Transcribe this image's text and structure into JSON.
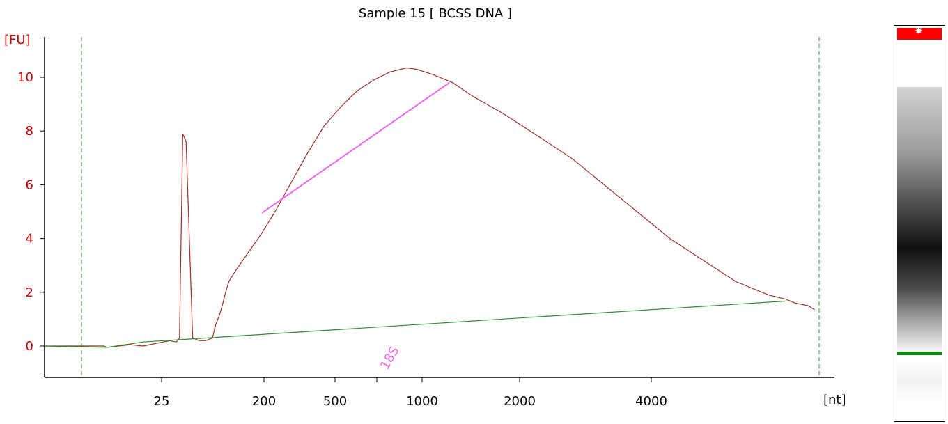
{
  "chart_data": {
    "type": "line",
    "title": "Sample 15  [ BCSS DNA ]",
    "ylabel": "[FU]",
    "xlabel": "[nt]",
    "ylim": [
      -1,
      11
    ],
    "yticks": [
      0,
      2,
      4,
      6,
      8,
      10
    ],
    "x_tick_labels": [
      "25",
      "200",
      "500",
      "1000",
      "2000",
      "4000"
    ],
    "grid": false,
    "series": [
      {
        "color": "#a0302a",
        "points": [
          [
            0,
            0
          ],
          [
            18,
            0
          ],
          [
            19,
            -0.05
          ],
          [
            26,
            0.05
          ],
          [
            30,
            0
          ],
          [
            34,
            0.1
          ],
          [
            38,
            0.2
          ],
          [
            40,
            0.15
          ],
          [
            41,
            0.3
          ],
          [
            42,
            7.9
          ],
          [
            43,
            7.6
          ],
          [
            45,
            0.3
          ],
          [
            47,
            0.2
          ],
          [
            49,
            0.2
          ],
          [
            51,
            0.3
          ],
          [
            52,
            0.8
          ],
          [
            53,
            1.1
          ],
          [
            54,
            1.5
          ],
          [
            55,
            2.0
          ],
          [
            56,
            2.4
          ],
          [
            58,
            2.8
          ],
          [
            62,
            3.5
          ],
          [
            66,
            4.2
          ],
          [
            70,
            5.0
          ],
          [
            75,
            6.1
          ],
          [
            80,
            7.2
          ],
          [
            85,
            8.2
          ],
          [
            90,
            8.9
          ],
          [
            95,
            9.5
          ],
          [
            100,
            9.9
          ],
          [
            105,
            10.2
          ],
          [
            110,
            10.35
          ],
          [
            113,
            10.3
          ],
          [
            118,
            10.1
          ],
          [
            124,
            9.8
          ],
          [
            130,
            9.3
          ],
          [
            140,
            8.6
          ],
          [
            150,
            7.8
          ],
          [
            160,
            7.0
          ],
          [
            170,
            6.0
          ],
          [
            180,
            5.0
          ],
          [
            190,
            4.0
          ],
          [
            200,
            3.2
          ],
          [
            210,
            2.4
          ],
          [
            220,
            1.9
          ],
          [
            225,
            1.75
          ],
          [
            228,
            1.6
          ],
          [
            232,
            1.5
          ],
          [
            234,
            1.35
          ]
        ]
      },
      {
        "name": "baseline",
        "color": "#2e8b2e",
        "points": [
          [
            0,
            0
          ],
          [
            19,
            -0.05
          ],
          [
            30,
            0.15
          ],
          [
            225,
            1.67
          ]
        ]
      }
    ],
    "annotations": [
      {
        "label": "18S",
        "x": 91,
        "color": "#ee66ee",
        "line_from": [
          66,
          4.95
        ],
        "line_to": [
          123,
          9.8
        ]
      }
    ]
  },
  "gel": {
    "colors": {
      "marker": "#ff0000",
      "band": "#0a8a0a"
    }
  }
}
